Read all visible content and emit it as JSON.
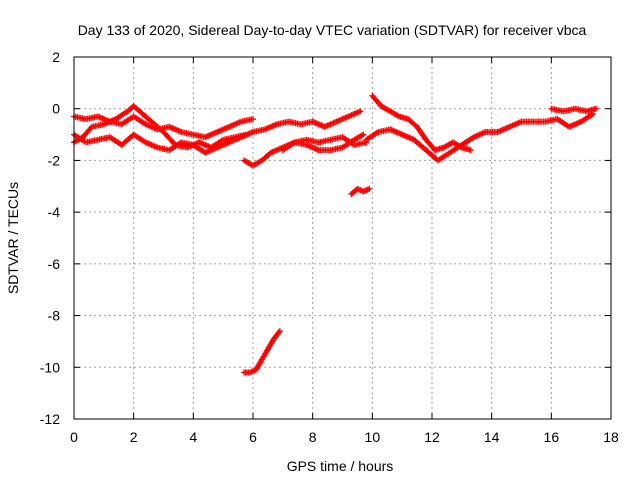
{
  "chart_data": {
    "type": "scatter",
    "title": "Day 133 of 2020, Sidereal Day-to-day VTEC variation (SDTVAR) for receiver vbca",
    "xlabel": "GPS time / hours",
    "ylabel": "SDTVAR / TECUs",
    "xlim": [
      0,
      18
    ],
    "ylim": [
      -12,
      2
    ],
    "xticks": [
      "0",
      "2",
      "4",
      "6",
      "8",
      "10",
      "12",
      "14",
      "16",
      "18"
    ],
    "yticks": [
      "2",
      "0",
      "-2",
      "-4",
      "-6",
      "-8",
      "-10",
      "-12"
    ],
    "grid": true,
    "marker": "plus",
    "color": "#ff0000",
    "series": [
      {
        "name": "track-1",
        "x": [
          0.0,
          0.4,
          0.8,
          1.2,
          1.6,
          2.0,
          2.4,
          2.8,
          3.2,
          3.6,
          4.0,
          4.4,
          4.8,
          5.2,
          5.6,
          6.0
        ],
        "y": [
          -0.3,
          -0.4,
          -0.3,
          -0.5,
          -0.6,
          -0.3,
          -0.6,
          -0.8,
          -0.7,
          -0.9,
          -1.0,
          -1.1,
          -0.9,
          -0.7,
          -0.5,
          -0.4
        ]
      },
      {
        "name": "track-2",
        "x": [
          0.0,
          0.3,
          0.6,
          1.0,
          1.4,
          1.8,
          2.0,
          2.3,
          2.6,
          3.0,
          3.4,
          3.8,
          4.2,
          4.6,
          5.0,
          5.4,
          5.8
        ],
        "y": [
          -1.3,
          -1.1,
          -0.7,
          -0.6,
          -0.4,
          -0.1,
          0.1,
          -0.2,
          -0.5,
          -0.9,
          -1.4,
          -1.5,
          -1.3,
          -1.5,
          -1.2,
          -1.1,
          -1.0
        ]
      },
      {
        "name": "track-3",
        "x": [
          0.0,
          0.4,
          0.8,
          1.2,
          1.6,
          2.0,
          2.4,
          2.8,
          3.2,
          3.6,
          4.0,
          4.4,
          4.8,
          5.2,
          5.6,
          6.0,
          6.4,
          6.8,
          7.2,
          7.6,
          8.0,
          8.4,
          8.8,
          9.2,
          9.6
        ],
        "y": [
          -1.0,
          -1.3,
          -1.2,
          -1.1,
          -1.4,
          -1.0,
          -1.3,
          -1.5,
          -1.6,
          -1.3,
          -1.4,
          -1.7,
          -1.5,
          -1.3,
          -1.1,
          -0.9,
          -0.8,
          -0.6,
          -0.5,
          -0.6,
          -0.5,
          -0.7,
          -0.5,
          -0.3,
          -0.1
        ]
      },
      {
        "name": "track-4",
        "x": [
          5.7,
          6.0,
          6.3,
          6.6,
          7.0,
          7.4,
          7.8,
          8.2,
          8.6,
          9.0,
          9.4,
          9.7
        ],
        "y": [
          -2.0,
          -2.2,
          -2.0,
          -1.7,
          -1.5,
          -1.3,
          -1.4,
          -1.6,
          -1.6,
          -1.5,
          -1.2,
          -1.0
        ]
      },
      {
        "name": "track-5",
        "x": [
          7.0,
          7.4,
          7.8,
          8.2,
          8.6,
          9.0,
          9.4,
          9.8
        ],
        "y": [
          -1.6,
          -1.3,
          -1.2,
          -1.3,
          -1.2,
          -1.1,
          -1.4,
          -1.3
        ]
      },
      {
        "name": "track-6",
        "x": [
          9.3,
          9.5,
          9.7,
          9.9
        ],
        "y": [
          -3.3,
          -3.1,
          -3.2,
          -3.1
        ]
      },
      {
        "name": "track-7",
        "x": [
          10.0,
          10.3,
          10.6,
          10.9,
          11.2,
          11.5,
          11.8,
          12.1,
          12.4,
          12.7,
          13.0,
          13.3
        ],
        "y": [
          0.5,
          0.1,
          -0.1,
          -0.3,
          -0.4,
          -0.7,
          -1.2,
          -1.6,
          -1.5,
          -1.3,
          -1.5,
          -1.6
        ]
      },
      {
        "name": "track-8",
        "x": [
          9.8,
          10.2,
          10.6,
          11.0,
          11.4,
          11.8,
          12.2,
          12.6,
          13.0,
          13.4,
          13.8,
          14.2,
          14.6,
          15.0,
          15.4,
          15.8,
          16.2,
          16.6,
          17.0,
          17.4
        ],
        "y": [
          -1.2,
          -0.9,
          -0.8,
          -1.0,
          -1.2,
          -1.6,
          -2.0,
          -1.7,
          -1.4,
          -1.1,
          -0.9,
          -0.9,
          -0.7,
          -0.5,
          -0.5,
          -0.5,
          -0.4,
          -0.7,
          -0.5,
          -0.2
        ]
      },
      {
        "name": "track-9",
        "x": [
          16.0,
          16.4,
          16.8,
          17.2,
          17.5
        ],
        "y": [
          0.0,
          -0.1,
          0.0,
          -0.1,
          0.0
        ]
      },
      {
        "name": "track-10",
        "x": [
          5.7,
          5.9,
          6.1,
          6.3,
          6.5,
          6.7,
          6.9
        ],
        "y": [
          -10.2,
          -10.2,
          -10.1,
          -9.7,
          -9.3,
          -8.9,
          -8.6
        ]
      }
    ]
  }
}
